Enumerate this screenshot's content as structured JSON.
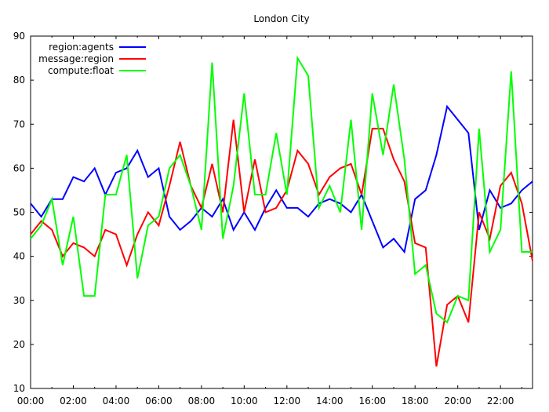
{
  "chart_data": {
    "type": "line",
    "title": "London City",
    "xlabel": "",
    "ylabel": "",
    "x_ticks": [
      "00:00",
      "02:00",
      "04:00",
      "06:00",
      "08:00",
      "10:00",
      "12:00",
      "14:00",
      "16:00",
      "18:00",
      "20:00",
      "22:00"
    ],
    "ylim": [
      10,
      90
    ],
    "y_ticks": [
      10,
      20,
      30,
      40,
      50,
      60,
      70,
      80,
      90
    ],
    "x_range_hours": [
      0,
      23.5
    ],
    "x": [
      0,
      0.5,
      1,
      1.5,
      2,
      2.5,
      3,
      3.5,
      4,
      4.5,
      5,
      5.5,
      6,
      6.5,
      7,
      7.5,
      8,
      8.5,
      9,
      9.5,
      10,
      10.5,
      11,
      11.5,
      12,
      12.5,
      13,
      13.5,
      14,
      14.5,
      15,
      15.5,
      16,
      16.5,
      17,
      17.5,
      18,
      18.5,
      19,
      19.5,
      20,
      20.5,
      21,
      21.5,
      22,
      22.5,
      23,
      23.5
    ],
    "grid": false,
    "legend_position": "top-left",
    "series": [
      {
        "name": "region:agents",
        "color": "#0000ff",
        "values": [
          52,
          49,
          53,
          53,
          58,
          57,
          60,
          54,
          59,
          60,
          64,
          58,
          60,
          49,
          46,
          48,
          51,
          49,
          53,
          46,
          50,
          46,
          51,
          55,
          51,
          51,
          49,
          52,
          53,
          52,
          50,
          54,
          48,
          42,
          44,
          41,
          53,
          55,
          63,
          74,
          71,
          68,
          46,
          55,
          51,
          52,
          55,
          57
        ]
      },
      {
        "name": "message:region",
        "color": "#ff0000",
        "values": [
          45,
          48,
          46,
          40,
          43,
          42,
          40,
          46,
          45,
          38,
          45,
          50,
          47,
          56,
          66,
          56,
          51,
          61,
          50,
          71,
          50,
          62,
          50,
          51,
          55,
          64,
          61,
          54,
          58,
          60,
          61,
          54,
          69,
          69,
          62,
          57,
          43,
          42,
          15,
          29,
          31,
          25,
          50,
          44,
          56,
          59,
          52,
          39
        ]
      },
      {
        "name": "compute:float",
        "color": "#00ff00",
        "values": [
          44,
          47,
          53,
          38,
          49,
          31,
          31,
          54,
          54,
          63,
          35,
          47,
          49,
          60,
          63,
          56,
          46,
          84,
          44,
          56,
          77,
          54,
          54,
          68,
          54,
          85,
          81,
          51,
          56,
          50,
          71,
          46,
          77,
          63,
          79,
          62,
          36,
          38,
          27,
          25,
          31,
          30,
          69,
          41,
          46,
          82,
          41,
          41
        ]
      }
    ]
  }
}
